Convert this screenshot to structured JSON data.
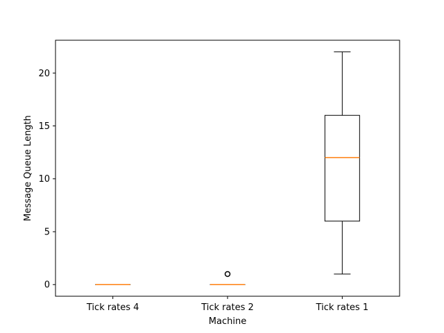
{
  "chart_data": {
    "type": "box",
    "title": "",
    "xlabel": "Machine",
    "ylabel": "Message Queue Length",
    "ylim": [
      -1.1,
      23.1
    ],
    "yticks": [
      0,
      5,
      10,
      15,
      20
    ],
    "grid": false,
    "categories": [
      "Tick rates 4",
      "Tick rates 2",
      "Tick rates 1"
    ],
    "boxes": [
      {
        "q1": 0,
        "median": 0,
        "q3": 0,
        "whisker_low": 0,
        "whisker_high": 0,
        "outliers": []
      },
      {
        "q1": 0,
        "median": 0,
        "q3": 0,
        "whisker_low": 0,
        "whisker_high": 0,
        "outliers": [
          1
        ]
      },
      {
        "q1": 6,
        "median": 12,
        "q3": 16,
        "whisker_low": 1,
        "whisker_high": 22,
        "outliers": []
      }
    ],
    "colors": {
      "box": "#000000",
      "median": "#ff7f0e",
      "outlier": "#000000"
    }
  }
}
